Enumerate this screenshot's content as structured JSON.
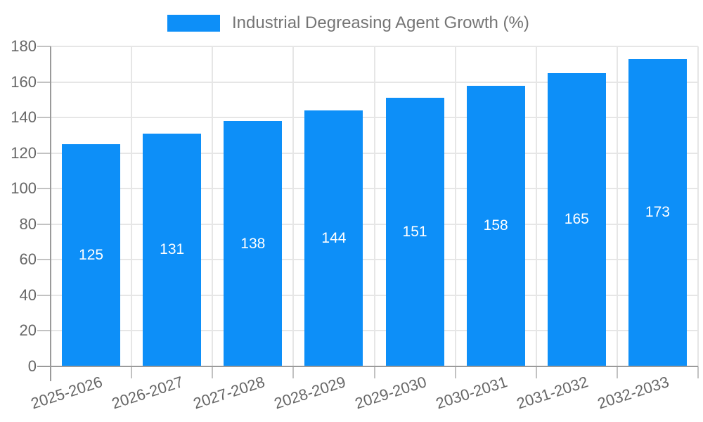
{
  "legend": {
    "label": "Industrial Degreasing Agent Growth (%)"
  },
  "chart_data": {
    "type": "bar",
    "title": "Industrial Degreasing Agent Growth (%)",
    "categories": [
      "2025-2026",
      "2026-2027",
      "2027-2028",
      "2028-2029",
      "2029-2030",
      "2030-2031",
      "2031-2032",
      "2032-2033"
    ],
    "values": [
      125,
      131,
      138,
      144,
      151,
      158,
      165,
      173
    ],
    "xlabel": "",
    "ylabel": "",
    "ylim": [
      0,
      180
    ],
    "ytick_step": 20,
    "yticks": [
      0,
      20,
      40,
      60,
      80,
      100,
      120,
      140,
      160,
      180
    ],
    "grid": true,
    "legend_position": "top-center",
    "bar_labels_visible": true,
    "bar_label_position": "center"
  },
  "colors": {
    "bar": "#0d8ff8",
    "bar_label": "#ffffff",
    "axis": "#9a9a9a",
    "tick": "#c2c2c2",
    "gridline": "#e6e6e6",
    "tick_label": "#666666",
    "legend_text": "#757575",
    "background": "#ffffff"
  }
}
